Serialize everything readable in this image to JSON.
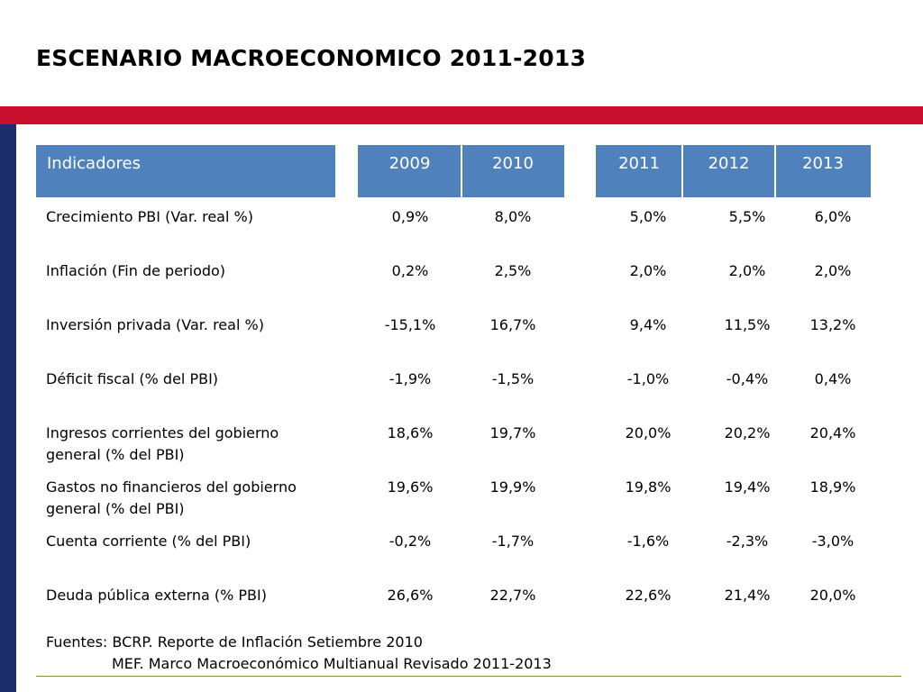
{
  "title": "ESCENARIO MACROECONOMICO 2011-2013",
  "colors": {
    "accent_red": "#c8102e",
    "left_band": "#1c2f6b",
    "header_blue": "#4f81bd"
  },
  "table": {
    "header_label": "Indicadores",
    "years": [
      "2009",
      "2010",
      "2011",
      "2012",
      "2013"
    ],
    "rows": [
      {
        "label": [
          "Crecimiento PBI (Var. real %)"
        ],
        "values": [
          "0,9%",
          "8,0%",
          "5,0%",
          "5,5%",
          "6,0%"
        ]
      },
      {
        "label": [
          "Inflación (Fin de periodo)"
        ],
        "values": [
          "0,2%",
          "2,5%",
          "2,0%",
          "2,0%",
          "2,0%"
        ]
      },
      {
        "label": [
          "Inversión privada (Var.  real %)"
        ],
        "values": [
          "-15,1%",
          "16,7%",
          "9,4%",
          "11,5%",
          "13,2%"
        ]
      },
      {
        "label": [
          "Déficit fiscal (% del PBI)"
        ],
        "values": [
          "-1,9%",
          "-1,5%",
          "-1,0%",
          "-0,4%",
          "0,4%"
        ]
      },
      {
        "label": [
          "Ingresos corrientes del  gobierno",
          "general (% del PBI)"
        ],
        "values": [
          "18,6%",
          "19,7%",
          "20,0%",
          "20,2%",
          "20,4%"
        ]
      },
      {
        "label": [
          "Gastos no financieros del gobierno",
          "general (% del PBI)"
        ],
        "values": [
          "19,6%",
          "19,9%",
          "19,8%",
          "19,4%",
          "18,9%"
        ]
      },
      {
        "label": [
          "Cuenta corriente  (% del PBI)"
        ],
        "values": [
          "-0,2%",
          "-1,7%",
          "-1,6%",
          "-2,3%",
          "-3,0%"
        ]
      },
      {
        "label": [
          "Deuda pública externa (% PBI)"
        ],
        "values": [
          "26,6%",
          "22,7%",
          "22,6%",
          "21,4%",
          "20,0%"
        ]
      }
    ]
  },
  "sources": {
    "line1": "Fuentes: BCRP. Reporte de Inflación Setiembre 2010",
    "line2": "MEF. Marco Macroeconómico Multianual Revisado 2011-2013"
  }
}
